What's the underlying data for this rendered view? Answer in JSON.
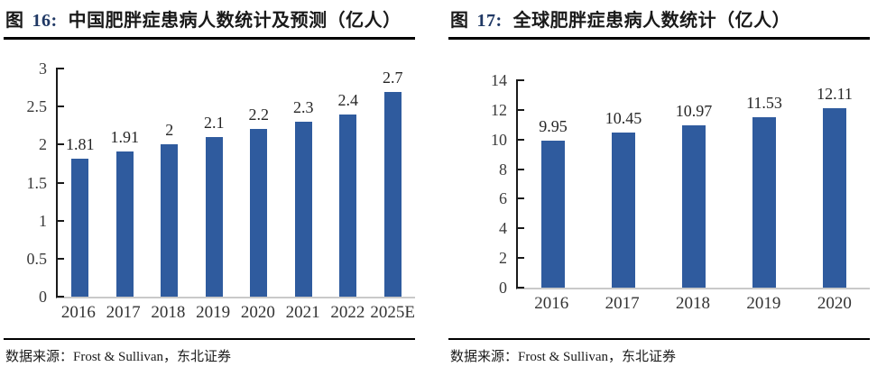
{
  "colors": {
    "bar": "#2f5b9e",
    "figure_number_accent": "#1f3864",
    "axis": "#1a1a1a",
    "baseline": "#c9c9c9",
    "tick_label": "#3a3a3a",
    "title_text": "#000000"
  },
  "source": {
    "text": "数据来源：Frost & Sullivan，东北证券"
  },
  "chart_data": [
    {
      "type": "bar",
      "fig_label": "图",
      "fig_number": "16:",
      "title_text": "中国肥胖症患病人数统计及预测（亿人）",
      "title": "图 16: 中国肥胖症患病人数统计及预测（亿人）",
      "unit": "亿人",
      "categories": [
        "2016",
        "2017",
        "2018",
        "2019",
        "2020",
        "2021",
        "2022",
        "2025E"
      ],
      "values": [
        1.81,
        1.91,
        2,
        2.1,
        2.2,
        2.3,
        2.4,
        2.7
      ],
      "value_labels": [
        "1.81",
        "1.91",
        "2",
        "2.1",
        "2.2",
        "2.3",
        "2.4",
        "2.7"
      ],
      "ylim": [
        0,
        3
      ],
      "yticks": [
        "0",
        "0.5",
        "1",
        "1.5",
        "2",
        "2.5",
        "3"
      ],
      "xlabel": "",
      "ylabel": "",
      "grid": false,
      "legend_position": "none"
    },
    {
      "type": "bar",
      "fig_label": "图",
      "fig_number": "17:",
      "title_text": "全球肥胖症患病人数统计（亿人）",
      "title": "图 17: 全球肥胖症患病人数统计（亿人）",
      "unit": "亿人",
      "categories": [
        "2016",
        "2017",
        "2018",
        "2019",
        "2020"
      ],
      "values": [
        9.95,
        10.45,
        10.97,
        11.53,
        12.11
      ],
      "value_labels": [
        "9.95",
        "10.45",
        "10.97",
        "11.53",
        "12.11"
      ],
      "ylim": [
        0,
        14
      ],
      "yticks": [
        "0",
        "2",
        "4",
        "6",
        "8",
        "10",
        "12",
        "14"
      ],
      "xlabel": "",
      "ylabel": "",
      "grid": false,
      "legend_position": "none"
    }
  ]
}
